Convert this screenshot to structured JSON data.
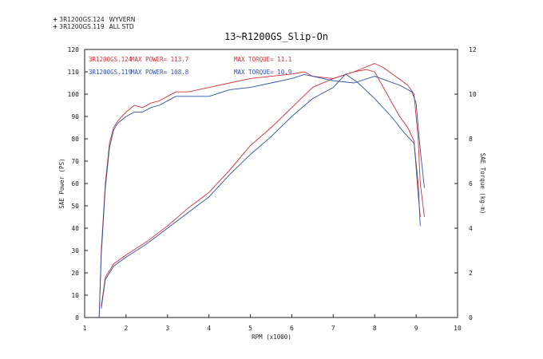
{
  "legend": [
    {
      "mark": "+",
      "code": "3R1200GS.124",
      "desc": "WYVERN",
      "color": "#d0303a"
    },
    {
      "mark": "+",
      "code": "3R1200GS.119",
      "desc": "ALL STD",
      "color": "#3050a8"
    }
  ],
  "chart_data": {
    "type": "line",
    "title": "13~R1200GS_Slip-On",
    "xlabel": "RPM (x1000)",
    "ylabel": "SAE Power (PS)",
    "y2label": "SAE Torque (kg-m)",
    "xlim": [
      1,
      10
    ],
    "ylim": [
      0,
      120
    ],
    "y2lim": [
      0,
      12
    ],
    "xticks": [
      "1",
      "2",
      "3",
      "4",
      "5",
      "6",
      "7",
      "8",
      "9",
      "10"
    ],
    "yticks": [
      "0",
      "10",
      "20",
      "30",
      "40",
      "50",
      "60",
      "70",
      "80",
      "90",
      "100",
      "110",
      "120"
    ],
    "y2ticks": [
      "0",
      "2",
      "4",
      "6",
      "8",
      "10",
      "12"
    ],
    "grid": false,
    "annotations": [
      {
        "text": "3R1200GS.124",
        "color": "#d0303a"
      },
      {
        "text": "MAX POWER= 113.7",
        "color": "#d0303a"
      },
      {
        "text": "MAX TORQUE= 11.1",
        "color": "#d0303a"
      },
      {
        "text": "3R1200GS.119",
        "color": "#3050a8"
      },
      {
        "text": "MAX POWER= 108.8",
        "color": "#3050a8"
      },
      {
        "text": "MAX TORQUE= 10.9",
        "color": "#3050a8"
      }
    ],
    "series": [
      {
        "name": "3R1200GS.124",
        "quantity": "power",
        "axis": "left",
        "color": "#d0303a",
        "x": [
          1.35,
          1.4,
          1.5,
          1.6,
          1.7,
          1.8,
          2.0,
          2.2,
          2.4,
          2.6,
          2.8,
          3.0,
          3.2,
          3.5,
          4.0,
          4.5,
          5.0,
          5.5,
          6.0,
          6.3,
          6.5,
          7.0,
          7.5,
          8.0,
          8.2,
          8.5,
          8.8,
          8.95,
          9.05,
          9.1,
          9.2
        ],
        "y": [
          0,
          30,
          60,
          78,
          85,
          88,
          92,
          95,
          94,
          96,
          97,
          99,
          101,
          101,
          103,
          105,
          107,
          108,
          109,
          110,
          108,
          107,
          110,
          113.7,
          112,
          108,
          104,
          100,
          80,
          60,
          45
        ]
      },
      {
        "name": "3R1200GS.124",
        "quantity": "torque",
        "axis": "right",
        "color": "#d0303a",
        "x": [
          1.4,
          1.5,
          1.7,
          2.0,
          2.5,
          3.0,
          3.5,
          4.0,
          4.5,
          5.0,
          5.5,
          6.0,
          6.5,
          7.0,
          7.5,
          7.8,
          8.0,
          8.3,
          8.6,
          8.8,
          8.95,
          9.05,
          9.1
        ],
        "y": [
          0.5,
          1.8,
          2.4,
          2.8,
          3.4,
          4.1,
          4.9,
          5.6,
          6.6,
          7.7,
          8.5,
          9.4,
          10.3,
          10.7,
          11.0,
          11.1,
          11.0,
          10.0,
          9.0,
          8.5,
          7.9,
          5.5,
          4.5
        ]
      },
      {
        "name": "3R1200GS.119",
        "quantity": "power",
        "axis": "left",
        "color": "#3050a8",
        "x": [
          1.35,
          1.4,
          1.5,
          1.6,
          1.7,
          1.8,
          2.0,
          2.2,
          2.4,
          2.6,
          2.8,
          3.0,
          3.2,
          3.5,
          4.0,
          4.5,
          5.0,
          5.5,
          6.0,
          6.3,
          6.5,
          7.0,
          7.5,
          8.0,
          8.3,
          8.6,
          8.9,
          9.0,
          9.1,
          9.2
        ],
        "y": [
          0,
          28,
          58,
          76,
          84,
          87,
          90,
          92,
          92,
          94,
          95,
          97,
          99,
          99,
          99,
          102,
          103,
          105,
          107,
          108.8,
          108,
          106,
          105,
          108,
          106,
          104,
          101,
          96,
          75,
          58
        ]
      },
      {
        "name": "3R1200GS.119",
        "quantity": "torque",
        "axis": "right",
        "color": "#3050a8",
        "x": [
          1.4,
          1.5,
          1.7,
          2.0,
          2.5,
          3.0,
          3.5,
          4.0,
          4.5,
          5.0,
          5.5,
          6.0,
          6.5,
          7.0,
          7.3,
          7.6,
          8.0,
          8.4,
          8.7,
          8.95,
          9.05,
          9.1
        ],
        "y": [
          0.4,
          1.7,
          2.3,
          2.7,
          3.3,
          4.0,
          4.7,
          5.4,
          6.4,
          7.3,
          8.1,
          9.0,
          9.8,
          10.3,
          10.9,
          10.5,
          9.8,
          9.0,
          8.3,
          7.8,
          6.0,
          4.1
        ]
      }
    ]
  }
}
